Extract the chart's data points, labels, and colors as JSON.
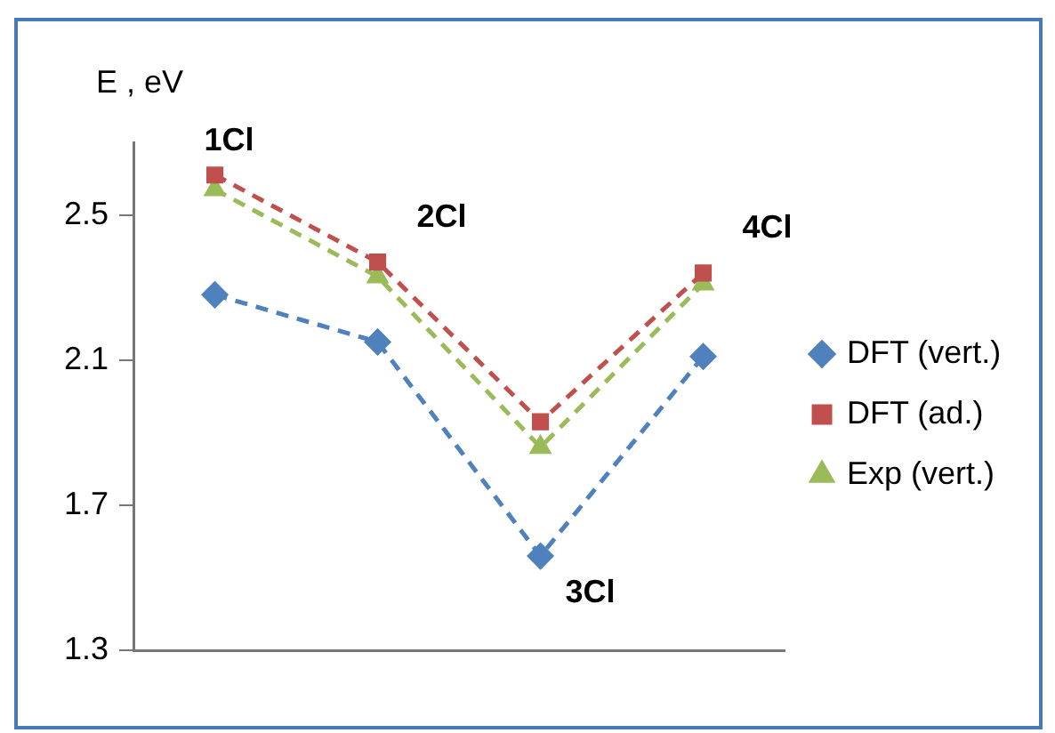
{
  "chart_data": {
    "type": "line",
    "ylabel": "E , eV",
    "categories": [
      null,
      null,
      null,
      null
    ],
    "ylim": [
      1.3,
      2.7
    ],
    "yticks": [
      1.3,
      1.7,
      2.1,
      2.5
    ],
    "grid": false,
    "legend": "right",
    "line_style": "dashed",
    "series": [
      {
        "name": "DFT (vert.)",
        "color": "#4f81bd",
        "marker": "diamond",
        "values": [
          2.28,
          2.15,
          1.56,
          2.11
        ]
      },
      {
        "name": "DFT (ad.)",
        "color": "#c0504d",
        "marker": "square",
        "values": [
          2.61,
          2.37,
          1.93,
          2.34
        ]
      },
      {
        "name": "Exp (vert.)",
        "color": "#9bbb59",
        "marker": "triangle",
        "values": [
          2.57,
          2.33,
          1.86,
          2.31
        ]
      }
    ],
    "annotations": [
      "1Cl",
      "2Cl",
      "3Cl",
      "4Cl"
    ]
  }
}
